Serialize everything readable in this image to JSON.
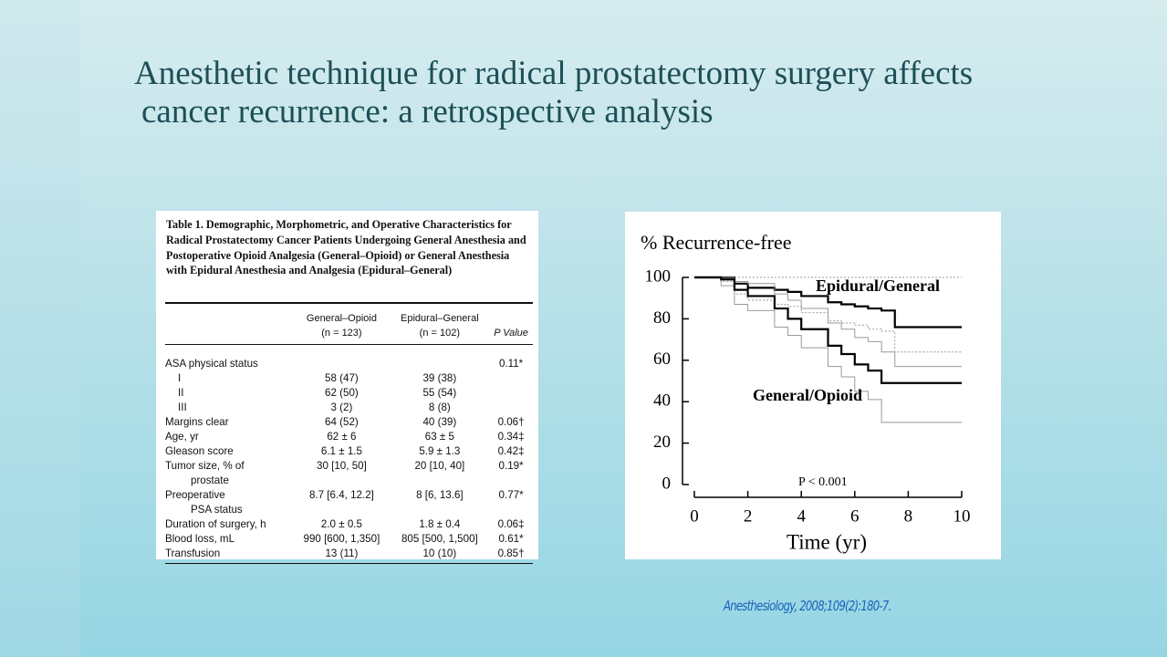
{
  "slide": {
    "title_lines": [
      "Anesthetic technique for radical prostatectomy surgery affects",
      "cancer recurrence: a retrospective analysis"
    ],
    "citation": "Anesthesiology, 2008;109(2):180-7."
  },
  "table": {
    "caption": "Table 1. Demographic, Morphometric, and Operative Characteristics for Radical Prostatectomy Cancer Patients Undergoing General Anesthesia and Postoperative Opioid Analgesia (General–Opioid) or General Anesthesia with Epidural Anesthesia and Analgesia (Epidural–General)",
    "headers": [
      {
        "title": "General–Opioid",
        "n": "(n = 123)"
      },
      {
        "title": "Epidural–General",
        "n": "(n = 102)"
      },
      {
        "title": "P Value"
      }
    ],
    "rows": [
      [
        "ASA physical status",
        null,
        null,
        "0.11*"
      ],
      [
        "I",
        "58 (47)",
        "39 (38)",
        null
      ],
      [
        "II",
        "62 (50)",
        "55 (54)",
        null
      ],
      [
        "III",
        "3 (2)",
        "8 (8)",
        null
      ],
      [
        "Margins clear",
        "64 (52)",
        "40 (39)",
        "0.06†"
      ],
      [
        "Age, yr",
        "62 ± 6",
        "63 ± 5",
        "0.34‡"
      ],
      [
        "Gleason score",
        "6.1 ± 1.5",
        "5.9 ± 1.3",
        "0.42‡"
      ],
      [
        "Tumor size, % of",
        "30 [10, 50]",
        "20 [10, 40]",
        "0.19*"
      ],
      [
        "prostate",
        null,
        null,
        null
      ],
      [
        "Preoperative",
        "8.7 [6.4, 12.2]",
        "8 [6, 13.6]",
        "0.77*"
      ],
      [
        "PSA status",
        null,
        null,
        null
      ],
      [
        "Duration of surgery, h",
        "2.0 ± 0.5",
        "1.8 ± 0.4",
        "0.06‡"
      ],
      [
        "Blood loss, mL",
        "990 [600, 1,350]",
        "805 [500, 1,500]",
        "0.61*"
      ],
      [
        "Transfusion",
        "13 (11)",
        "10 (10)",
        "0.85†"
      ]
    ]
  },
  "chart_data": {
    "type": "line",
    "title": "% Recurrence-free",
    "xlabel": "Time (yr)",
    "annotation": "P < 0.001",
    "x": [
      0,
      1,
      1.5,
      2,
      3,
      3.5,
      4,
      5,
      5.5,
      6,
      6.5,
      7,
      7.5,
      10
    ],
    "series": [
      {
        "name": "Epidural/General",
        "color": "#000000",
        "values": [
          100,
          100,
          97,
          95,
          94,
          93,
          91,
          88,
          87,
          86,
          85,
          84,
          76,
          76
        ],
        "lower": [
          100,
          98,
          92,
          89,
          87,
          86,
          83,
          79,
          78,
          77,
          75,
          74,
          64,
          64
        ],
        "upper": [
          100,
          100,
          100,
          100,
          100,
          100,
          100,
          100,
          100,
          100,
          100,
          100,
          100,
          100
        ]
      },
      {
        "name": "General/Opioid",
        "color": "#000000",
        "values": [
          100,
          99,
          94,
          91,
          85,
          80,
          75,
          67,
          63,
          58,
          55,
          49,
          49,
          49
        ],
        "lower": [
          100,
          96,
          87,
          84,
          76,
          72,
          66,
          57,
          52,
          45,
          41,
          30,
          30,
          30
        ],
        "upper": [
          100,
          100,
          98,
          97,
          92,
          89,
          85,
          78,
          75,
          71,
          69,
          64,
          57,
          57
        ]
      }
    ],
    "band_color": "#999999",
    "xlim": [
      0,
      10
    ],
    "ylim": [
      0,
      100
    ],
    "xticks": [
      0,
      2,
      4,
      6,
      8,
      10
    ],
    "yticks": [
      0,
      20,
      40,
      60,
      80,
      100
    ]
  }
}
